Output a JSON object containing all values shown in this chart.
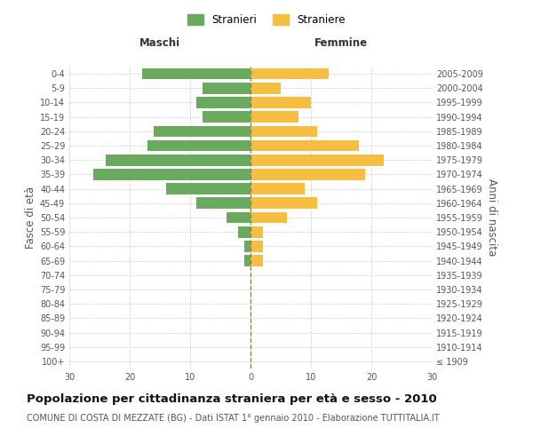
{
  "age_groups": [
    "100+",
    "95-99",
    "90-94",
    "85-89",
    "80-84",
    "75-79",
    "70-74",
    "65-69",
    "60-64",
    "55-59",
    "50-54",
    "45-49",
    "40-44",
    "35-39",
    "30-34",
    "25-29",
    "20-24",
    "15-19",
    "10-14",
    "5-9",
    "0-4"
  ],
  "birth_years": [
    "≤ 1909",
    "1910-1914",
    "1915-1919",
    "1920-1924",
    "1925-1929",
    "1930-1934",
    "1935-1939",
    "1940-1944",
    "1945-1949",
    "1950-1954",
    "1955-1959",
    "1960-1964",
    "1965-1969",
    "1970-1974",
    "1975-1979",
    "1980-1984",
    "1985-1989",
    "1990-1994",
    "1995-1999",
    "2000-2004",
    "2005-2009"
  ],
  "males": [
    0,
    0,
    0,
    0,
    0,
    0,
    0,
    1,
    1,
    2,
    4,
    9,
    14,
    26,
    24,
    17,
    16,
    8,
    9,
    8,
    18
  ],
  "females": [
    0,
    0,
    0,
    0,
    0,
    0,
    0,
    2,
    2,
    2,
    6,
    11,
    9,
    19,
    22,
    18,
    11,
    8,
    10,
    5,
    13
  ],
  "male_color": "#6aaa5e",
  "female_color": "#f5be41",
  "background_color": "#ffffff",
  "grid_color": "#cccccc",
  "center_line_color": "#888855",
  "xlim": 30,
  "title": "Popolazione per cittadinanza straniera per età e sesso - 2010",
  "subtitle": "COMUNE DI COSTA DI MEZZATE (BG) - Dati ISTAT 1° gennaio 2010 - Elaborazione TUTTITALIA.IT",
  "ylabel_left": "Fasce di età",
  "ylabel_right": "Anni di nascita",
  "xlabel_left": "Maschi",
  "xlabel_right": "Femmine",
  "legend_male": "Stranieri",
  "legend_female": "Straniere",
  "tick_fontsize": 7,
  "label_fontsize": 8.5,
  "title_fontsize": 9.5,
  "subtitle_fontsize": 7
}
